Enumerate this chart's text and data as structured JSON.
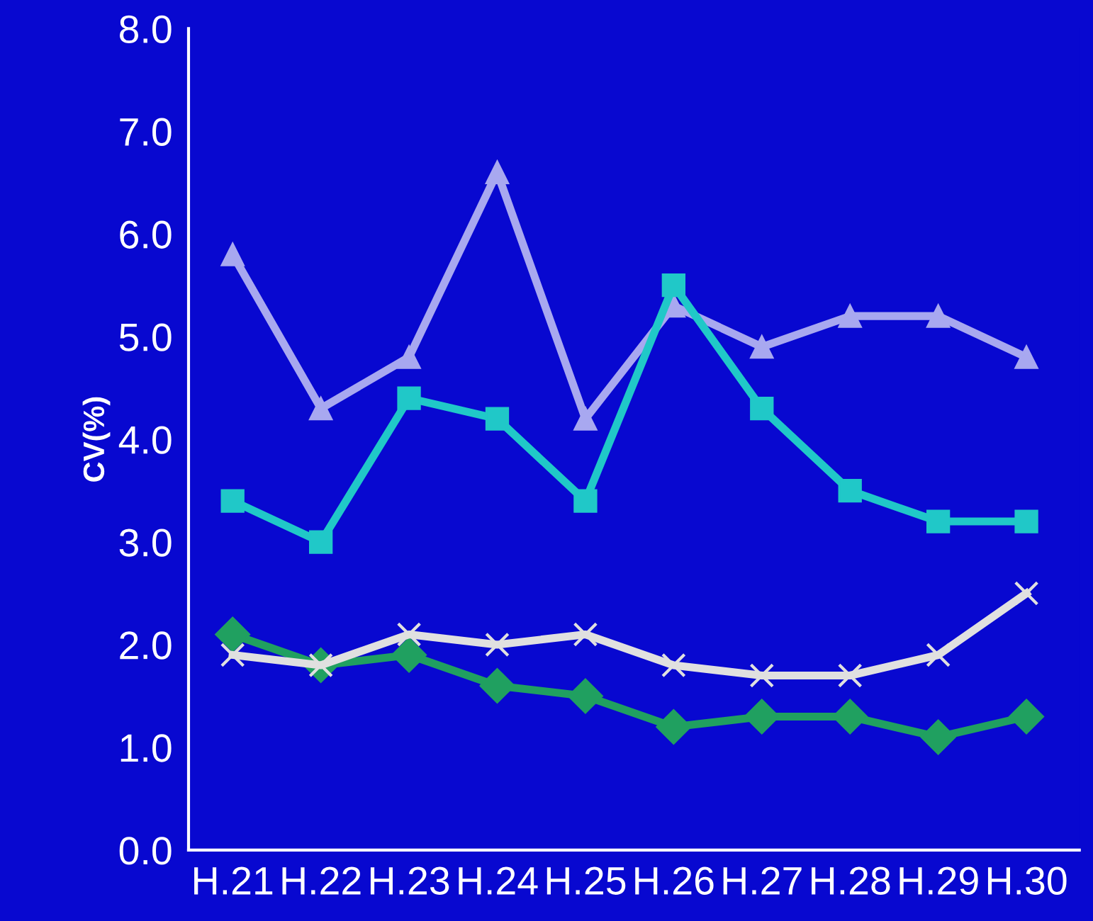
{
  "chart_data": {
    "type": "line",
    "ylabel": "CV(%)",
    "categories": [
      "H.21",
      "H.22",
      "H.23",
      "H.24",
      "H.25",
      "H.26",
      "H.27",
      "H.28",
      "H.29",
      "H.30"
    ],
    "series": [
      {
        "color": "#a8a8f0",
        "marker": "triangle",
        "values": [
          5.8,
          4.3,
          4.8,
          6.6,
          4.2,
          5.3,
          4.9,
          5.2,
          5.2,
          4.8
        ]
      },
      {
        "color": "#20c8c8",
        "marker": "square",
        "values": [
          3.4,
          3.0,
          4.4,
          4.2,
          3.4,
          5.5,
          4.3,
          3.5,
          3.2,
          3.2
        ]
      },
      {
        "color": "#20a060",
        "marker": "diamond",
        "values": [
          2.1,
          1.8,
          1.9,
          1.6,
          1.5,
          1.2,
          1.3,
          1.3,
          1.1,
          1.3
        ]
      },
      {
        "color": "#e0e0e0",
        "marker": "cross",
        "values": [
          1.9,
          1.8,
          2.1,
          2.0,
          2.1,
          1.8,
          1.7,
          1.7,
          1.9,
          2.5
        ]
      }
    ],
    "ylim": [
      0,
      8
    ],
    "yticks": [
      {
        "value": 0,
        "label": "0.0"
      },
      {
        "value": 1,
        "label": "1.0"
      },
      {
        "value": 2,
        "label": "2.0"
      },
      {
        "value": 3,
        "label": "3.0"
      },
      {
        "value": 4,
        "label": "4.0"
      },
      {
        "value": 5,
        "label": "5.0"
      },
      {
        "value": 6,
        "label": "6.0"
      },
      {
        "value": 7,
        "label": "7.0"
      },
      {
        "value": 8,
        "label": "8.0"
      }
    ],
    "grid": false,
    "legend": false
  }
}
